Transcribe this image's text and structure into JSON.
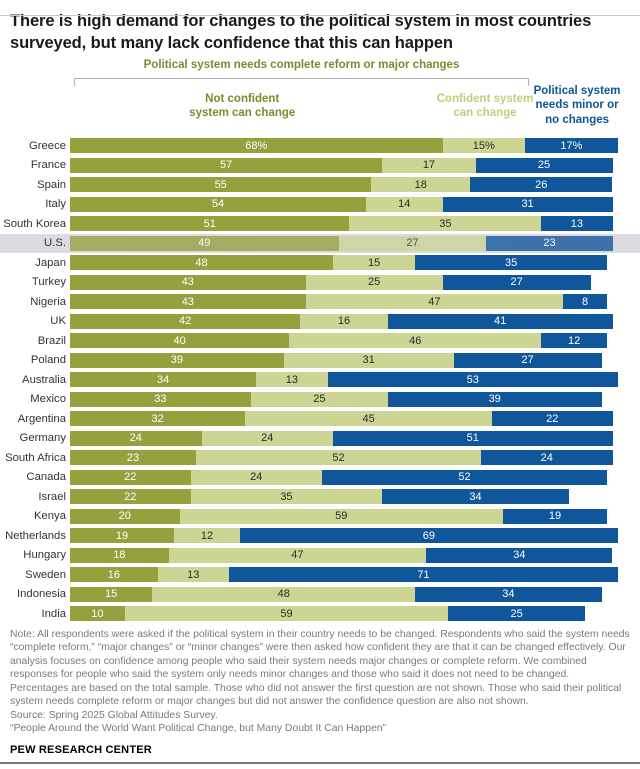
{
  "page": {
    "title": "There is high demand for changes to the political system in most countries surveyed, but many lack confidence that this can happen",
    "footer_brand": "PEW RESEARCH CENTER"
  },
  "legend": {
    "bracket_label": "Political system needs complete reform or major changes",
    "not_confident_label": "Not confident\nsystem can change",
    "confident_label": "Confident system\ncan change",
    "minor_label": "Political system\nneeds minor or\nno changes"
  },
  "chart_data": {
    "type": "bar",
    "stacked": true,
    "orientation": "horizontal",
    "unit": "%",
    "xlim": [
      0,
      100
    ],
    "value_suffix_first_row": "%",
    "highlighted_category": "U.S.",
    "highlight_color": "#DCD9E2",
    "categories": [
      "Greece",
      "France",
      "Spain",
      "Italy",
      "South Korea",
      "U.S.",
      "Japan",
      "Turkey",
      "Nigeria",
      "UK",
      "Brazil",
      "Poland",
      "Australia",
      "Mexico",
      "Argentina",
      "Germany",
      "South Africa",
      "Canada",
      "Israel",
      "Kenya",
      "Netherlands",
      "Hungary",
      "Sweden",
      "Indonesia",
      "India"
    ],
    "series": [
      {
        "key": "not_confident",
        "name": "Not confident system can change",
        "color": "#96A03D",
        "label_color": "#FFFFFF",
        "values": [
          68,
          57,
          55,
          54,
          51,
          49,
          48,
          43,
          43,
          42,
          40,
          39,
          34,
          33,
          32,
          24,
          23,
          22,
          22,
          20,
          19,
          18,
          16,
          15,
          10
        ]
      },
      {
        "key": "confident",
        "name": "Confident system can change",
        "color": "#CCD593",
        "label_color": "#2B2B2B",
        "values": [
          15,
          17,
          18,
          14,
          35,
          27,
          15,
          25,
          47,
          16,
          46,
          31,
          13,
          25,
          45,
          24,
          52,
          24,
          35,
          59,
          12,
          47,
          13,
          48,
          59
        ]
      },
      {
        "key": "minor_none",
        "name": "Political system needs minor or no changes",
        "color": "#10569A",
        "label_color": "#FFFFFF",
        "values": [
          17,
          25,
          26,
          31,
          13,
          23,
          35,
          27,
          8,
          41,
          12,
          27,
          53,
          39,
          22,
          51,
          24,
          52,
          34,
          19,
          69,
          34,
          71,
          34,
          25
        ]
      }
    ]
  },
  "notes": {
    "note": "Note: All respondents were asked if the political system in their country needs to be changed. Respondents who said the system needs “complete reform,” “major changes” or “minor changes” were then asked how confident they are that it can be changed effectively. Our analysis focuses on confidence among people who said their system needs major changes or complete reform. We combined responses for people who said the system only needs minor changes and those who said it does not need to be changed. Percentages are based on the total sample. Those who did not answer the first question are not shown. Those who said their political system needs complete reform or major changes but did not answer the confidence question are also not shown.",
    "source": "Source: Spring 2025 Global Attitudes Survey.",
    "quote": "“People Around the World Want Political Change, but Many Doubt It Can Happen”"
  }
}
